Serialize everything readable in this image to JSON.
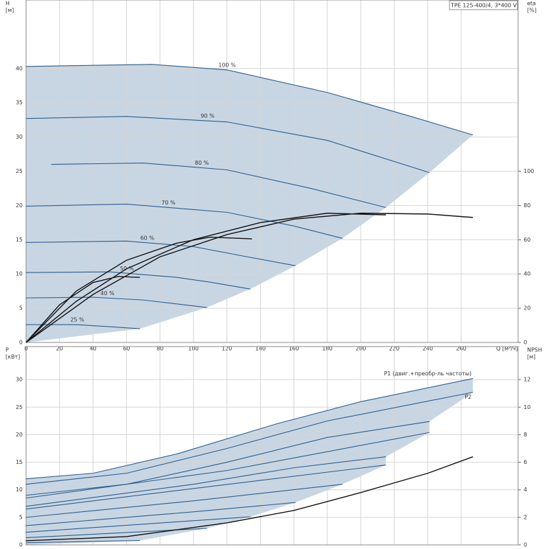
{
  "chart_data": [
    {
      "type": "line",
      "title": "TPE 125-400/4, 3*400 V",
      "ylabel": [
        "H",
        "[м]"
      ],
      "y2label": [
        "eta",
        "[%]"
      ],
      "xlabel": "Q [м³/ч]",
      "xlim": [
        0,
        294
      ],
      "ylim": [
        0,
        50
      ],
      "y2lim": [
        0,
        200
      ],
      "xticks": [
        0,
        20,
        40,
        60,
        80,
        100,
        120,
        140,
        160,
        180,
        200,
        220,
        240,
        260
      ],
      "yticks": [
        0,
        5,
        10,
        15,
        20,
        25,
        30,
        35,
        40
      ],
      "y2ticks": [
        0,
        20,
        40,
        60,
        80,
        100
      ],
      "grid": true,
      "envelope": true,
      "show_xtick_labels": true,
      "area_color": "#c8d6e4",
      "series": [
        {
          "name": "100 %",
          "color": "#2b5c8c",
          "x": [
            0,
            75,
            120,
            180,
            230,
            267
          ],
          "values": [
            40.3,
            40.6,
            39.8,
            36.5,
            33,
            30.3
          ]
        },
        {
          "name": "90 %",
          "color": "#2b5c8c",
          "x": [
            0,
            60,
            120,
            180,
            241
          ],
          "values": [
            32.7,
            33,
            32.2,
            29.5,
            24.8
          ]
        },
        {
          "name": "80 %",
          "color": "#2b5c8c",
          "x": [
            15,
            70,
            120,
            170,
            215
          ],
          "values": [
            26,
            26.2,
            25.2,
            22.5,
            19.7
          ]
        },
        {
          "name": "70 %",
          "color": "#2b5c8c",
          "x": [
            0,
            60,
            120,
            160,
            189
          ],
          "values": [
            19.9,
            20.2,
            19,
            17,
            15.2
          ]
        },
        {
          "name": "60 %",
          "color": "#2b5c8c",
          "x": [
            0,
            60,
            100,
            130,
            161
          ],
          "values": [
            14.6,
            14.8,
            14,
            12.6,
            11.2
          ]
        },
        {
          "name": "50 %",
          "color": "#2b5c8c",
          "x": [
            0,
            50,
            90,
            110,
            134
          ],
          "values": [
            10.2,
            10.3,
            9.5,
            8.8,
            7.8
          ]
        },
        {
          "name": "40 %",
          "color": "#2b5c8c",
          "x": [
            0,
            40,
            70,
            108
          ],
          "values": [
            6.5,
            6.6,
            6.2,
            5.1
          ]
        },
        {
          "name": "25 %",
          "color": "#2b5c8c",
          "x": [
            0,
            30,
            50,
            68
          ],
          "values": [
            2.6,
            2.6,
            2.3,
            2.0
          ]
        },
        {
          "color": "#111111",
          "axis": "y2",
          "x": [
            0,
            40,
            80,
            120,
            160,
            200,
            240,
            267
          ],
          "values": [
            0,
            28,
            50,
            63,
            72,
            75.5,
            75,
            73
          ]
        },
        {
          "color": "#111111",
          "axis": "y2",
          "x": [
            0,
            30,
            60,
            100,
            140,
            180,
            215
          ],
          "values": [
            0,
            24,
            43,
            60,
            70,
            75.5,
            74.5
          ]
        },
        {
          "color": "#111111",
          "axis": "y2",
          "x": [
            0,
            30,
            60,
            90,
            110,
            135
          ],
          "values": [
            0,
            30,
            48,
            58,
            61.5,
            60.5
          ]
        },
        {
          "color": "#111111",
          "axis": "y2",
          "x": [
            0,
            20,
            40,
            55,
            68
          ],
          "values": [
            0,
            22,
            35,
            38.5,
            38
          ]
        }
      ]
    },
    {
      "type": "line",
      "ylabel": [
        "P",
        "[кВт]"
      ],
      "y2label": [
        "NPSH",
        "[м]"
      ],
      "xlim": [
        0,
        294
      ],
      "ylim": [
        0,
        36
      ],
      "y2lim": [
        0,
        14.4
      ],
      "xticks": [
        0,
        20,
        40,
        60,
        80,
        100,
        120,
        140,
        160,
        180,
        200,
        220,
        240,
        260
      ],
      "yticks": [
        0,
        5,
        10,
        15,
        20,
        25,
        30
      ],
      "y2ticks": [
        0,
        2,
        4,
        6,
        8,
        10,
        12
      ],
      "grid": true,
      "envelope": true,
      "show_xtick_labels": false,
      "area_color": "#c8d6e4",
      "series": [
        {
          "name": "P1 (двиг.+преобр-ль частоты)",
          "color": "#2b5c8c",
          "x": [
            0,
            40,
            90,
            150,
            200,
            267
          ],
          "values": [
            12,
            13,
            16.5,
            22,
            26,
            30.2
          ]
        },
        {
          "name": "P2",
          "color": "#2b5c8c",
          "x": [
            0,
            60,
            120,
            180,
            267
          ],
          "values": [
            11,
            13,
            17.5,
            22.5,
            27.7
          ]
        },
        {
          "color": "#2b5c8c",
          "x": [
            0,
            60,
            120,
            180,
            241
          ],
          "values": [
            9,
            11,
            15,
            19.5,
            22.4
          ]
        },
        {
          "color": "#2b5c8c",
          "x": [
            0,
            120,
            241
          ],
          "values": [
            8.5,
            13.5,
            20.4
          ]
        },
        {
          "color": "#2b5c8c",
          "x": [
            0,
            100,
            160,
            215
          ],
          "values": [
            7,
            11,
            14,
            16
          ]
        },
        {
          "color": "#2b5c8c",
          "x": [
            0,
            215
          ],
          "values": [
            6.5,
            14.5
          ]
        },
        {
          "color": "#2b5c8c",
          "x": [
            0,
            100,
            189
          ],
          "values": [
            5,
            8,
            11
          ]
        },
        {
          "color": "#2b5c8c",
          "x": [
            0,
            100,
            161
          ],
          "values": [
            3.5,
            6,
            7.7
          ]
        },
        {
          "color": "#2b5c8c",
          "x": [
            0,
            134
          ],
          "values": [
            2.3,
            5.1
          ]
        },
        {
          "color": "#2b5c8c",
          "x": [
            0,
            108
          ],
          "values": [
            1.3,
            3
          ]
        },
        {
          "color": "#2b5c8c",
          "x": [
            0,
            68
          ],
          "values": [
            0.4,
            0.8
          ]
        },
        {
          "color": "#111111",
          "axis": "y2",
          "x": [
            0,
            60,
            120,
            160,
            200,
            240,
            267
          ],
          "values": [
            0.3,
            0.6,
            1.6,
            2.5,
            3.8,
            5.2,
            6.4
          ]
        }
      ]
    }
  ]
}
